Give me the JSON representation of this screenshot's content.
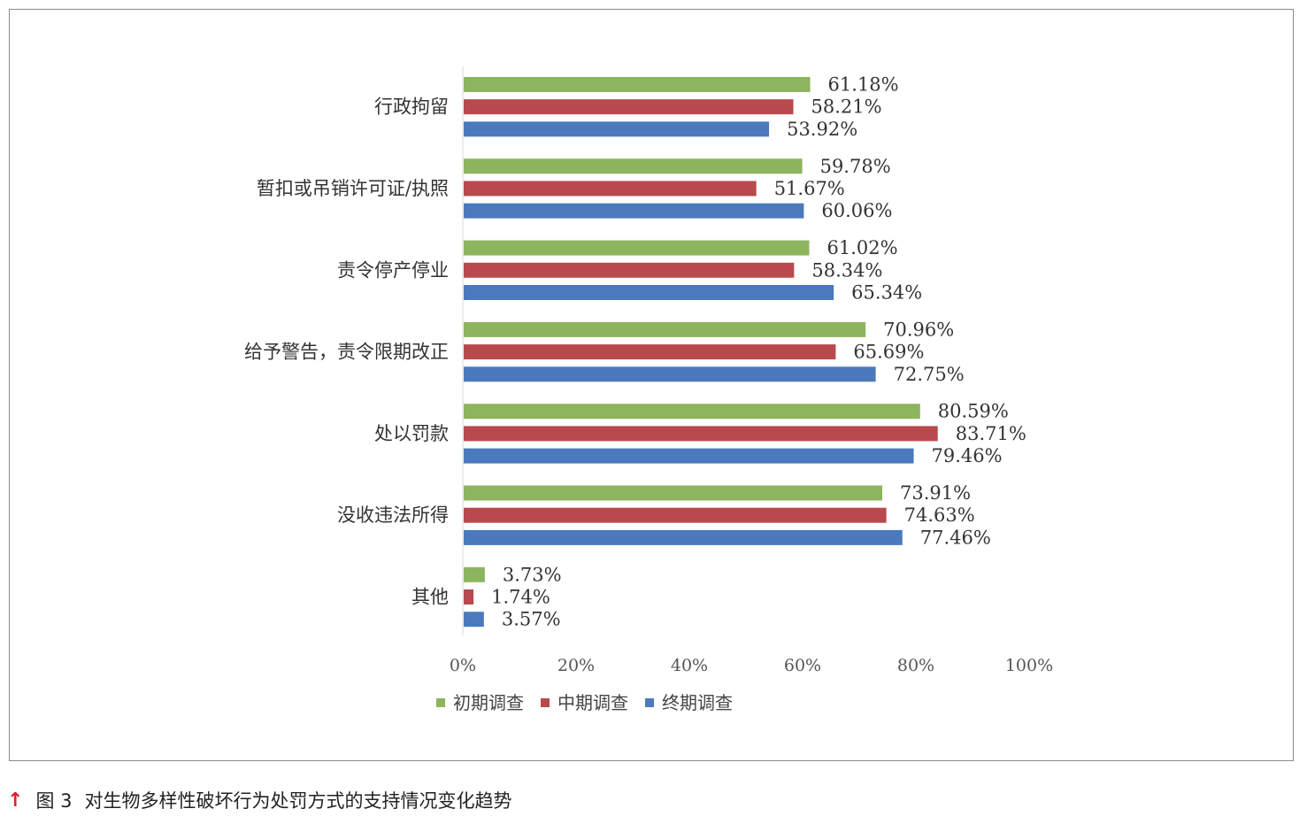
{
  "chart_data": {
    "type": "bar",
    "orientation": "horizontal",
    "categories": [
      "行政拘留",
      "暂扣或吊销许可证/执照",
      "责令停产停业",
      "给予警告，责令限期改正",
      "处以罚款",
      "没收违法所得",
      "其他"
    ],
    "series": [
      {
        "name": "初期调查",
        "color": "#8db45e",
        "values": [
          61.18,
          59.78,
          61.02,
          70.96,
          80.59,
          73.91,
          3.73
        ],
        "labels": [
          "61.18%",
          "59.78%",
          "61.02%",
          "70.96%",
          "80.59%",
          "73.91%",
          "3.73%"
        ]
      },
      {
        "name": "中期调查",
        "color": "#b84a4e",
        "values": [
          58.21,
          51.67,
          58.34,
          65.69,
          83.71,
          74.63,
          1.74
        ],
        "labels": [
          "58.21%",
          "51.67%",
          "58.34%",
          "65.69%",
          "83.71%",
          "74.63%",
          "1.74%"
        ]
      },
      {
        "name": "终期调查",
        "color": "#4a7abd",
        "values": [
          53.92,
          60.06,
          65.34,
          72.75,
          79.46,
          77.46,
          3.57
        ],
        "labels": [
          "53.92%",
          "60.06%",
          "65.34%",
          "72.75%",
          "79.46%",
          "77.46%",
          "3.57%"
        ]
      }
    ],
    "xlim": [
      0,
      100
    ],
    "xticks": [
      "0%",
      "20%",
      "40%",
      "60%",
      "80%",
      "100%"
    ],
    "grid": false,
    "legend_position": "bottom"
  },
  "caption": {
    "arrow": "↑",
    "figure_number": "图 3",
    "text": "对生物多样性破坏行为处罚方式的支持情况变化趋势"
  }
}
